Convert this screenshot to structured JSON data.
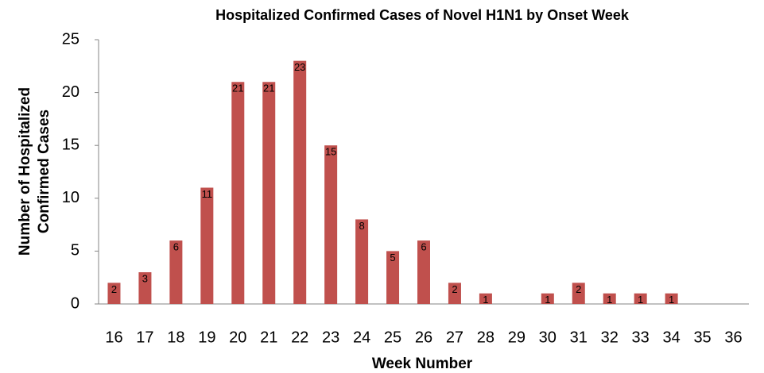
{
  "chart_data": {
    "type": "bar",
    "title": "Hospitalized Confirmed Cases of Novel H1N1 by Onset Week",
    "xlabel": "Week Number",
    "ylabel": [
      "Number of Hospitalized",
      "Confirmed Cases"
    ],
    "categories": [
      "16",
      "17",
      "18",
      "19",
      "20",
      "21",
      "22",
      "23",
      "24",
      "25",
      "26",
      "27",
      "28",
      "29",
      "30",
      "31",
      "32",
      "33",
      "34",
      "35",
      "36"
    ],
    "values": [
      2,
      3,
      6,
      11,
      21,
      21,
      23,
      15,
      8,
      5,
      6,
      2,
      1,
      null,
      1,
      2,
      1,
      1,
      1,
      null,
      null
    ],
    "color": "#c0504d",
    "ylim": [
      0,
      25
    ],
    "yticks": [
      0,
      5,
      10,
      15,
      20,
      25
    ],
    "grid": false
  }
}
